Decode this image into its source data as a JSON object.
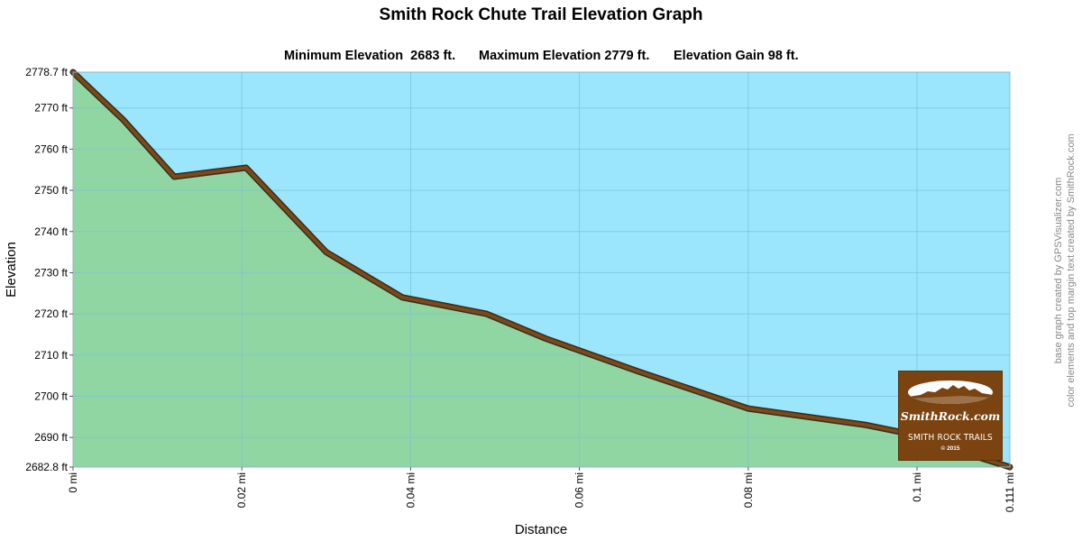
{
  "page": {
    "title": "Smith Rock Chute Trail Elevation Graph",
    "stats": {
      "min": "Minimum Elevation  2683 ft.",
      "max": "Maximum Elevation 2779 ft.",
      "gain": "Elevation Gain 98 ft."
    },
    "credits": {
      "line1": "base graph created by GPSVisualizer.com",
      "line2": "color elements and top margin text created by SmithRock.com"
    },
    "logo": {
      "site": "SmithRock.com",
      "subtitle": "SMITH ROCK TRAILS",
      "copyright": "© 2015"
    },
    "colors": {
      "sky": "#9be6fd",
      "ground": "#90d6a2",
      "trail": "#7a4a1a",
      "trail_edge": "#3a2a1a",
      "grid": "#7cc4d4"
    }
  },
  "chart_data": {
    "type": "area",
    "title": "Smith Rock Chute Trail Elevation Graph",
    "xlabel": "Distance",
    "ylabel": "Elevation",
    "xlim": [
      0,
      0.111
    ],
    "ylim": [
      2682.8,
      2778.7
    ],
    "x_ticks": [
      {
        "value": 0,
        "label": "0 mi"
      },
      {
        "value": 0.02,
        "label": "0.02 mi"
      },
      {
        "value": 0.04,
        "label": "0.04 mi"
      },
      {
        "value": 0.06,
        "label": "0.06 mi"
      },
      {
        "value": 0.08,
        "label": "0.08 mi"
      },
      {
        "value": 0.1,
        "label": "0.1 mi"
      },
      {
        "value": 0.111,
        "label": "0.111 mi"
      }
    ],
    "y_ticks": [
      {
        "value": 2682.8,
        "label": "2682.8 ft"
      },
      {
        "value": 2690,
        "label": "2690 ft"
      },
      {
        "value": 2700,
        "label": "2700 ft"
      },
      {
        "value": 2710,
        "label": "2710 ft"
      },
      {
        "value": 2720,
        "label": "2720 ft"
      },
      {
        "value": 2730,
        "label": "2730 ft"
      },
      {
        "value": 2740,
        "label": "2740 ft"
      },
      {
        "value": 2750,
        "label": "2750 ft"
      },
      {
        "value": 2760,
        "label": "2760 ft"
      },
      {
        "value": 2770,
        "label": "2770 ft"
      },
      {
        "value": 2778.7,
        "label": "2778.7 ft"
      }
    ],
    "series": [
      {
        "name": "Elevation",
        "x": [
          0,
          0.006,
          0.012,
          0.0205,
          0.03,
          0.039,
          0.049,
          0.056,
          0.067,
          0.08,
          0.094,
          0.1,
          0.106,
          0.111
        ],
        "y": [
          2778.7,
          2767,
          2753.3,
          2755.5,
          2735,
          2724,
          2720,
          2714,
          2706,
          2697,
          2693,
          2690.5,
          2686,
          2682.8
        ]
      }
    ],
    "grid": true
  }
}
